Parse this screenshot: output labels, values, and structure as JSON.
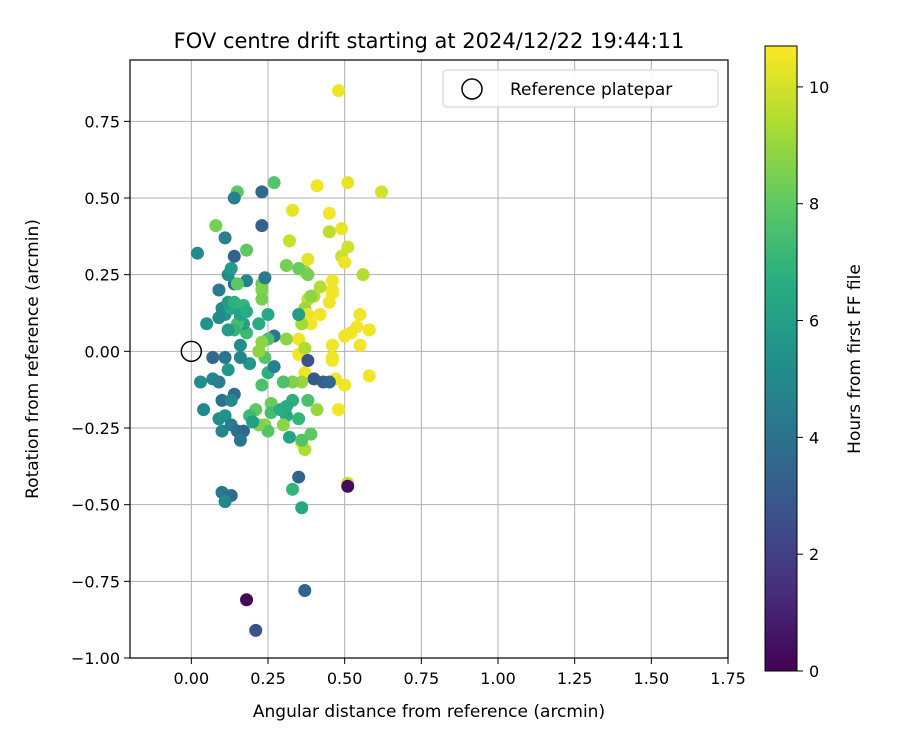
{
  "chart_data": {
    "type": "scatter",
    "title": "FOV centre drift starting at 2024/12/22 19:44:11",
    "xlabel": "Angular distance from reference (arcmin)",
    "ylabel": "Rotation from reference (arcmin)",
    "xlim": [
      -0.2,
      1.75
    ],
    "ylim": [
      -1.0,
      0.95
    ],
    "xticks": [
      0.0,
      0.25,
      0.5,
      0.75,
      1.0,
      1.25,
      1.5,
      1.75
    ],
    "xtick_labels": [
      "0.00",
      "0.25",
      "0.50",
      "0.75",
      "1.00",
      "1.25",
      "1.50",
      "1.75"
    ],
    "yticks": [
      -1.0,
      -0.75,
      -0.5,
      -0.25,
      0.0,
      0.25,
      0.5,
      0.75
    ],
    "ytick_labels": [
      "−1.00",
      "−0.75",
      "−0.50",
      "−0.25",
      "0.00",
      "0.25",
      "0.50",
      "0.75"
    ],
    "grid": true,
    "legend": {
      "label": "Reference platepar",
      "placement": "top-right"
    },
    "reference_point": {
      "x": 0.0,
      "y": 0.0
    },
    "colorbar": {
      "label": "Hours from first FF file",
      "colormap": "viridis",
      "range": [
        0,
        10.7
      ],
      "ticks": [
        0,
        2,
        4,
        6,
        8,
        10
      ]
    },
    "points": [
      {
        "x": 0.48,
        "y": 0.85,
        "h": 10.4
      },
      {
        "x": 0.62,
        "y": 0.52,
        "h": 10.0
      },
      {
        "x": 0.51,
        "y": 0.55,
        "h": 10.3
      },
      {
        "x": 0.41,
        "y": 0.54,
        "h": 10.5
      },
      {
        "x": 0.33,
        "y": 0.46,
        "h": 10.3
      },
      {
        "x": 0.45,
        "y": 0.45,
        "h": 10.5
      },
      {
        "x": 0.49,
        "y": 0.4,
        "h": 10.4
      },
      {
        "x": 0.45,
        "y": 0.39,
        "h": 9.6
      },
      {
        "x": 0.51,
        "y": 0.34,
        "h": 9.9
      },
      {
        "x": 0.49,
        "y": 0.31,
        "h": 9.9
      },
      {
        "x": 0.32,
        "y": 0.36,
        "h": 9.8
      },
      {
        "x": 0.38,
        "y": 0.3,
        "h": 10.3
      },
      {
        "x": 0.5,
        "y": 0.29,
        "h": 10.4
      },
      {
        "x": 0.56,
        "y": 0.25,
        "h": 9.5
      },
      {
        "x": 0.37,
        "y": 0.26,
        "h": 9.2
      },
      {
        "x": 0.38,
        "y": 0.25,
        "h": 8.4
      },
      {
        "x": 0.46,
        "y": 0.23,
        "h": 10.5
      },
      {
        "x": 0.46,
        "y": 0.2,
        "h": 10.5
      },
      {
        "x": 0.42,
        "y": 0.21,
        "h": 9.5
      },
      {
        "x": 0.4,
        "y": 0.18,
        "h": 9.6
      },
      {
        "x": 0.38,
        "y": 0.17,
        "h": 9.8
      },
      {
        "x": 0.46,
        "y": 0.19,
        "h": 10.5
      },
      {
        "x": 0.45,
        "y": 0.16,
        "h": 10.5
      },
      {
        "x": 0.37,
        "y": 0.14,
        "h": 9.0
      },
      {
        "x": 0.38,
        "y": 0.12,
        "h": 10.4
      },
      {
        "x": 0.42,
        "y": 0.12,
        "h": 10.5
      },
      {
        "x": 0.39,
        "y": 0.09,
        "h": 10.5
      },
      {
        "x": 0.36,
        "y": 0.09,
        "h": 9.2
      },
      {
        "x": 0.55,
        "y": 0.12,
        "h": 10.5
      },
      {
        "x": 0.54,
        "y": 0.08,
        "h": 10.5
      },
      {
        "x": 0.58,
        "y": 0.07,
        "h": 10.5
      },
      {
        "x": 0.52,
        "y": 0.06,
        "h": 10.5
      },
      {
        "x": 0.5,
        "y": 0.05,
        "h": 10.5
      },
      {
        "x": 0.55,
        "y": 0.02,
        "h": 10.5
      },
      {
        "x": 0.46,
        "y": 0.02,
        "h": 10.5
      },
      {
        "x": 0.46,
        "y": -0.02,
        "h": 10.5
      },
      {
        "x": 0.46,
        "y": -0.03,
        "h": 10.5
      },
      {
        "x": 0.35,
        "y": 0.04,
        "h": 10.5
      },
      {
        "x": 0.35,
        "y": -0.01,
        "h": 10.5
      },
      {
        "x": 0.37,
        "y": 0.01,
        "h": 9.4
      },
      {
        "x": 0.58,
        "y": -0.08,
        "h": 10.5
      },
      {
        "x": 0.47,
        "y": -0.09,
        "h": 10.5
      },
      {
        "x": 0.5,
        "y": -0.11,
        "h": 10.5
      },
      {
        "x": 0.48,
        "y": -0.19,
        "h": 10.5
      },
      {
        "x": 0.37,
        "y": -0.07,
        "h": 10.5
      },
      {
        "x": 0.38,
        "y": -0.03,
        "h": 2.6
      },
      {
        "x": 0.4,
        "y": -0.09,
        "h": 2.9
      },
      {
        "x": 0.43,
        "y": -0.1,
        "h": 3.2
      },
      {
        "x": 0.45,
        "y": -0.1,
        "h": 3.6
      },
      {
        "x": 0.36,
        "y": -0.1,
        "h": 9.0
      },
      {
        "x": 0.33,
        "y": -0.1,
        "h": 8.6
      },
      {
        "x": 0.3,
        "y": -0.1,
        "h": 7.6
      },
      {
        "x": 0.36,
        "y": -0.3,
        "h": 10.5
      },
      {
        "x": 0.37,
        "y": -0.32,
        "h": 9.4
      },
      {
        "x": 0.39,
        "y": -0.27,
        "h": 8.0
      },
      {
        "x": 0.41,
        "y": -0.19,
        "h": 9.0
      },
      {
        "x": 0.38,
        "y": -0.16,
        "h": 7.6
      },
      {
        "x": 0.35,
        "y": -0.22,
        "h": 7.0
      },
      {
        "x": 0.33,
        "y": -0.16,
        "h": 6.8
      },
      {
        "x": 0.31,
        "y": -0.18,
        "h": 6.6
      },
      {
        "x": 0.31,
        "y": -0.21,
        "h": 6.4
      },
      {
        "x": 0.3,
        "y": -0.24,
        "h": 8.8
      },
      {
        "x": 0.26,
        "y": -0.17,
        "h": 8.2
      },
      {
        "x": 0.26,
        "y": -0.2,
        "h": 7.4
      },
      {
        "x": 0.24,
        "y": -0.24,
        "h": 8.8
      },
      {
        "x": 0.25,
        "y": -0.26,
        "h": 7.8
      },
      {
        "x": 0.22,
        "y": -0.24,
        "h": 8.6
      },
      {
        "x": 0.21,
        "y": -0.19,
        "h": 8.0
      },
      {
        "x": 0.19,
        "y": -0.21,
        "h": 7.2
      },
      {
        "x": 0.2,
        "y": -0.23,
        "h": 6.0
      },
      {
        "x": 0.23,
        "y": -0.11,
        "h": 7.6
      },
      {
        "x": 0.25,
        "y": -0.07,
        "h": 6.8
      },
      {
        "x": 0.27,
        "y": -0.05,
        "h": 4.6
      },
      {
        "x": 0.24,
        "y": -0.02,
        "h": 7.8
      },
      {
        "x": 0.22,
        "y": 0.0,
        "h": 8.8
      },
      {
        "x": 0.19,
        "y": -0.04,
        "h": 5.6
      },
      {
        "x": 0.16,
        "y": -0.02,
        "h": 4.8
      },
      {
        "x": 0.16,
        "y": 0.02,
        "h": 5.2
      },
      {
        "x": 0.18,
        "y": 0.06,
        "h": 7.2
      },
      {
        "x": 0.17,
        "y": 0.09,
        "h": 6.0
      },
      {
        "x": 0.16,
        "y": 0.11,
        "h": 6.8
      },
      {
        "x": 0.15,
        "y": 0.09,
        "h": 7.4
      },
      {
        "x": 0.14,
        "y": 0.07,
        "h": 7.0
      },
      {
        "x": 0.12,
        "y": 0.07,
        "h": 5.8
      },
      {
        "x": 0.11,
        "y": 0.12,
        "h": 5.6
      },
      {
        "x": 0.1,
        "y": 0.14,
        "h": 5.2
      },
      {
        "x": 0.09,
        "y": 0.11,
        "h": 5.0
      },
      {
        "x": 0.05,
        "y": 0.09,
        "h": 5.4
      },
      {
        "x": 0.13,
        "y": 0.14,
        "h": 6.4
      },
      {
        "x": 0.12,
        "y": 0.16,
        "h": 5.8
      },
      {
        "x": 0.14,
        "y": 0.16,
        "h": 6.8
      },
      {
        "x": 0.17,
        "y": 0.15,
        "h": 7.0
      },
      {
        "x": 0.16,
        "y": 0.12,
        "h": 6.2
      },
      {
        "x": 0.18,
        "y": 0.13,
        "h": 6.6
      },
      {
        "x": 0.18,
        "y": 0.23,
        "h": 4.8
      },
      {
        "x": 0.14,
        "y": 0.22,
        "h": 3.8
      },
      {
        "x": 0.12,
        "y": 0.25,
        "h": 5.2
      },
      {
        "x": 0.13,
        "y": 0.27,
        "h": 5.8
      },
      {
        "x": 0.14,
        "y": 0.31,
        "h": 3.4
      },
      {
        "x": 0.09,
        "y": 0.2,
        "h": 4.4
      },
      {
        "x": 0.11,
        "y": 0.37,
        "h": 4.6
      },
      {
        "x": 0.08,
        "y": 0.41,
        "h": 8.4
      },
      {
        "x": 0.18,
        "y": 0.33,
        "h": 8.0
      },
      {
        "x": 0.15,
        "y": 0.22,
        "h": 8.0
      },
      {
        "x": 0.23,
        "y": 0.22,
        "h": 8.2
      },
      {
        "x": 0.23,
        "y": 0.2,
        "h": 8.6
      },
      {
        "x": 0.23,
        "y": 0.17,
        "h": 8.4
      },
      {
        "x": 0.22,
        "y": 0.09,
        "h": 6.6
      },
      {
        "x": 0.25,
        "y": 0.12,
        "h": 6.4
      },
      {
        "x": 0.24,
        "y": 0.24,
        "h": 4.4
      },
      {
        "x": 0.27,
        "y": 0.05,
        "h": 4.2
      },
      {
        "x": 0.25,
        "y": 0.04,
        "h": 7.6
      },
      {
        "x": 0.23,
        "y": 0.03,
        "h": 8.8
      },
      {
        "x": 0.31,
        "y": 0.04,
        "h": 8.8
      },
      {
        "x": 0.29,
        "y": -0.19,
        "h": 6.6
      },
      {
        "x": 0.32,
        "y": -0.28,
        "h": 6.2
      },
      {
        "x": 0.36,
        "y": -0.29,
        "h": 7.8
      },
      {
        "x": 0.36,
        "y": -0.51,
        "h": 6.4
      },
      {
        "x": 0.33,
        "y": -0.45,
        "h": 7.0
      },
      {
        "x": 0.35,
        "y": -0.41,
        "h": 3.4
      },
      {
        "x": 0.31,
        "y": 0.28,
        "h": 8.4
      },
      {
        "x": 0.35,
        "y": 0.27,
        "h": 8.2
      },
      {
        "x": 0.35,
        "y": 0.12,
        "h": 6.0
      },
      {
        "x": 0.39,
        "y": 0.18,
        "h": 8.8
      },
      {
        "x": 0.03,
        "y": -0.1,
        "h": 5.2
      },
      {
        "x": 0.04,
        "y": -0.19,
        "h": 5.0
      },
      {
        "x": 0.07,
        "y": -0.02,
        "h": 3.6
      },
      {
        "x": 0.07,
        "y": -0.09,
        "h": 4.8
      },
      {
        "x": 0.09,
        "y": -0.1,
        "h": 4.6
      },
      {
        "x": 0.11,
        "y": -0.02,
        "h": 4.2
      },
      {
        "x": 0.12,
        "y": -0.06,
        "h": 5.6
      },
      {
        "x": 0.1,
        "y": -0.16,
        "h": 4.0
      },
      {
        "x": 0.14,
        "y": -0.14,
        "h": 3.8
      },
      {
        "x": 0.13,
        "y": -0.16,
        "h": 5.0
      },
      {
        "x": 0.09,
        "y": -0.22,
        "h": 5.2
      },
      {
        "x": 0.11,
        "y": -0.21,
        "h": 5.4
      },
      {
        "x": 0.1,
        "y": -0.26,
        "h": 4.8
      },
      {
        "x": 0.13,
        "y": -0.24,
        "h": 4.4
      },
      {
        "x": 0.15,
        "y": -0.26,
        "h": 4.0
      },
      {
        "x": 0.17,
        "y": -0.26,
        "h": 3.6
      },
      {
        "x": 0.16,
        "y": -0.29,
        "h": 4.2
      },
      {
        "x": 0.1,
        "y": -0.46,
        "h": 4.2
      },
      {
        "x": 0.13,
        "y": -0.47,
        "h": 3.8
      },
      {
        "x": 0.11,
        "y": -0.49,
        "h": 5.0
      },
      {
        "x": 0.02,
        "y": 0.32,
        "h": 5.2
      },
      {
        "x": 0.15,
        "y": 0.52,
        "h": 8.0
      },
      {
        "x": 0.14,
        "y": 0.5,
        "h": 4.6
      },
      {
        "x": 0.23,
        "y": 0.52,
        "h": 3.6
      },
      {
        "x": 0.27,
        "y": 0.55,
        "h": 7.8
      },
      {
        "x": 0.23,
        "y": 0.41,
        "h": 3.4
      },
      {
        "x": 0.51,
        "y": -0.43,
        "h": 9.8
      },
      {
        "x": 0.51,
        "y": -0.44,
        "h": 0.3
      },
      {
        "x": 0.18,
        "y": -0.81,
        "h": 0.2
      },
      {
        "x": 0.21,
        "y": -0.91,
        "h": 2.6
      },
      {
        "x": 0.37,
        "y": -0.78,
        "h": 3.4
      }
    ]
  }
}
